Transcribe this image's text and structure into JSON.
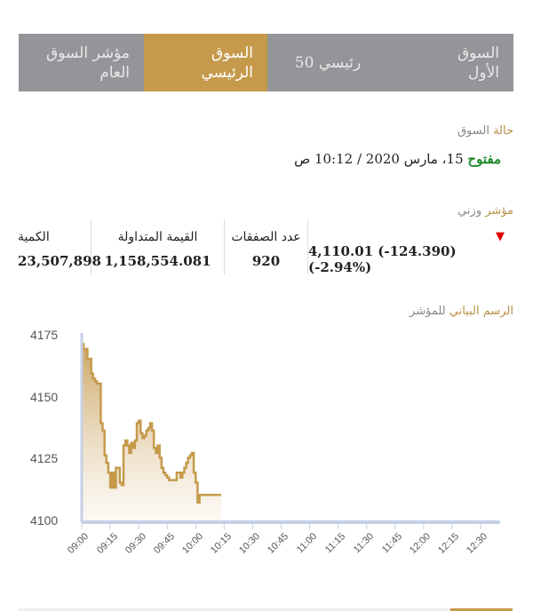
{
  "tabs": [
    {
      "label": "السوق\nالأول",
      "active": false
    },
    {
      "label": "رئيسي 50",
      "active": false
    },
    {
      "label": "السوق\nالرئيسي",
      "active": true
    },
    {
      "label": "مؤشر السوق\nالعام",
      "active": false
    }
  ],
  "market_status": {
    "label_accent": "حالة",
    "label_rest": " السوق",
    "status": "مفتوح",
    "datetime": " 15، مارس 2020 / 10:12 ص"
  },
  "index": {
    "label_accent": "مؤشر",
    "label_rest": " وزني",
    "direction": "down",
    "arrow_glyph": "▼",
    "value_line": "4,110.01 (-124.390) (-2.94%)"
  },
  "stats": {
    "deals_label": "عدد الصفقات",
    "deals_value": "920",
    "traded_value_label": "القيمة المتداولة",
    "traded_value": "1,158,554.081",
    "quantity_label": "الكمية",
    "quantity_value": "23,507,898"
  },
  "chart_section": {
    "title_accent": "الرسم البياني",
    "title_rest": " للمؤشر"
  },
  "colors": {
    "accent": "#c59a4b",
    "tab_bg": "#939598",
    "positive_status": "#1f8a2a",
    "down_arrow": "#e00000",
    "axis": "#c5d0e6"
  },
  "chart_data": {
    "type": "area",
    "title": "الرسم البياني للمؤشر",
    "xlabel": "",
    "ylabel": "",
    "ylim": [
      4100,
      4175
    ],
    "yticks": [
      4100,
      4125,
      4150,
      4175
    ],
    "xticks": [
      "09:00",
      "09:15",
      "09:30",
      "09:45",
      "10:00",
      "10:15",
      "10:30",
      "10:45",
      "11:00",
      "11:15",
      "11:30",
      "11:45",
      "12:00",
      "12:15",
      "12:30"
    ],
    "grid": false,
    "legend": "none",
    "series": [
      {
        "name": "مؤشر وزني",
        "x": [
          "09:00",
          "09:01",
          "09:03",
          "09:05",
          "09:06",
          "09:07",
          "09:08",
          "09:10",
          "09:11",
          "09:12",
          "09:13",
          "09:14",
          "09:15",
          "09:16",
          "09:17",
          "09:18",
          "09:19",
          "09:20",
          "09:21",
          "09:22",
          "09:23",
          "09:24",
          "09:25",
          "09:26",
          "09:27",
          "09:28",
          "09:29",
          "09:30",
          "09:31",
          "09:32",
          "09:33",
          "09:34",
          "09:35",
          "09:36",
          "09:37",
          "09:38",
          "09:39",
          "09:40",
          "09:41",
          "09:42",
          "09:43",
          "09:44",
          "09:45",
          "09:46",
          "09:47",
          "09:48",
          "09:49",
          "09:50",
          "09:51",
          "09:52",
          "09:53",
          "09:54",
          "09:55",
          "09:56",
          "09:57",
          "09:58",
          "09:59",
          "10:00",
          "10:01",
          "10:02",
          "10:03",
          "10:04",
          "10:05",
          "10:06",
          "10:07",
          "10:08",
          "10:09",
          "10:10",
          "10:11",
          "10:12"
        ],
        "values": [
          4172,
          4170,
          4166,
          4160,
          4158,
          4157,
          4156,
          4140,
          4137,
          4127,
          4124,
          4120,
          4114,
          4120,
          4114,
          4122,
          4122,
          4116,
          4115,
          4131,
          4133,
          4131,
          4128,
          4132,
          4130,
          4133,
          4140,
          4141,
          4136,
          4134,
          4135,
          4137,
          4138,
          4140,
          4137,
          4130,
          4128,
          4131,
          4126,
          4122,
          4120,
          4119,
          4118,
          4117,
          4117,
          4117,
          4117,
          4120,
          4120,
          4118,
          4120,
          4122,
          4124,
          4126,
          4127,
          4128,
          4120,
          4116,
          4108,
          4111,
          4111,
          4111,
          4111,
          4111,
          4111,
          4111,
          4111,
          4111,
          4111,
          4111
        ]
      }
    ]
  }
}
